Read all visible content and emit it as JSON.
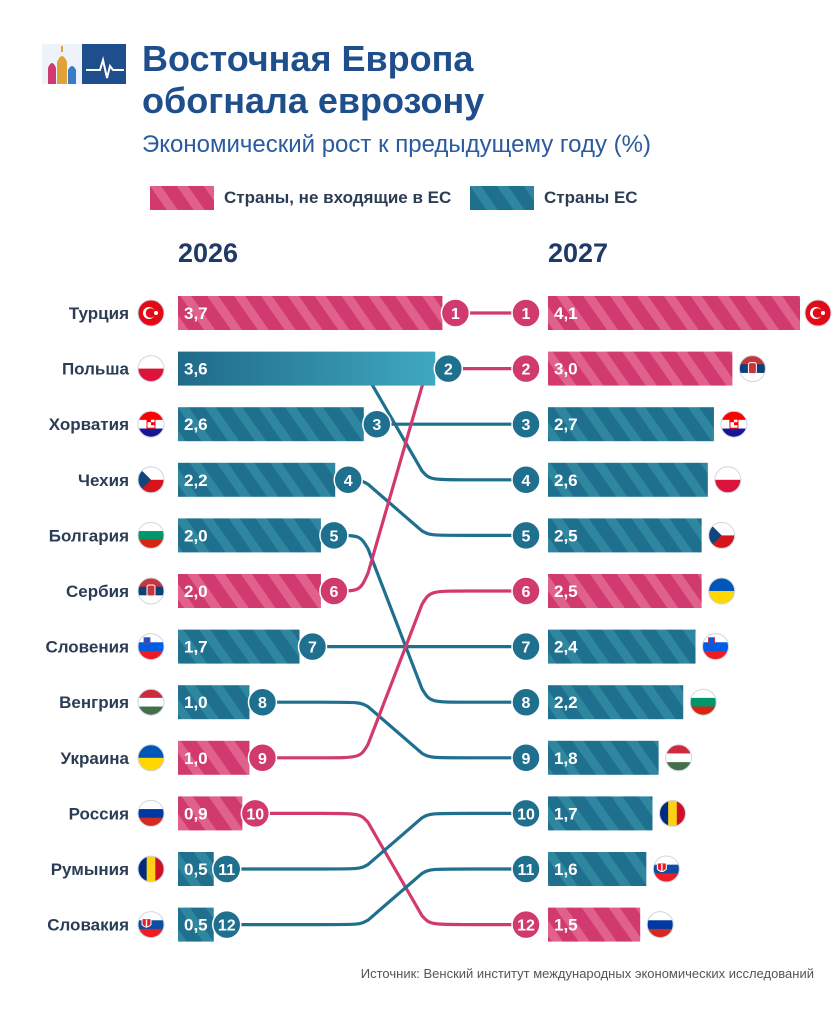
{
  "header": {
    "title_line1": "Восточная Европа",
    "title_line2": "обогнала еврозону",
    "subtitle": "Экономический рост к предыдущему году (%)"
  },
  "colors": {
    "non_eu": "#d13a6e",
    "eu": "#1f6f8e",
    "eu_top": "#3a9bb6",
    "title": "#1f4e8c"
  },
  "legend": {
    "non_eu": "Страны, не входящие в ЕС",
    "eu": "Страны ЕС"
  },
  "source": "Источник: Венский институт международных экономических исследований",
  "chart_data": {
    "type": "bar",
    "value_max": 4.1,
    "flags": {
      "Турция": "turkey-flag",
      "Польша": "poland-flag",
      "Хорватия": "croatia-flag",
      "Чехия": "czechia-flag",
      "Болгария": "bulgaria-flag",
      "Сербия": "serbia-flag",
      "Словения": "slovenia-flag",
      "Венгрия": "hungary-flag",
      "Украина": "ukraine-flag",
      "Россия": "russia-flag",
      "Румыния": "romania-flag",
      "Словакия": "slovakia-flag"
    },
    "panels": [
      {
        "year": "2026",
        "rows": [
          {
            "rank": 1,
            "country": "Турция",
            "value": 3.7,
            "label": "3,7",
            "group": "non_eu"
          },
          {
            "rank": 2,
            "country": "Польша",
            "value": 3.6,
            "label": "3,6",
            "group": "eu"
          },
          {
            "rank": 3,
            "country": "Хорватия",
            "value": 2.6,
            "label": "2,6",
            "group": "eu"
          },
          {
            "rank": 4,
            "country": "Чехия",
            "value": 2.2,
            "label": "2,2",
            "group": "eu"
          },
          {
            "rank": 5,
            "country": "Болгария",
            "value": 2.0,
            "label": "2,0",
            "group": "eu"
          },
          {
            "rank": 6,
            "country": "Сербия",
            "value": 2.0,
            "label": "2,0",
            "group": "non_eu"
          },
          {
            "rank": 7,
            "country": "Словения",
            "value": 1.7,
            "label": "1,7",
            "group": "eu"
          },
          {
            "rank": 8,
            "country": "Венгрия",
            "value": 1.0,
            "label": "1,0",
            "group": "eu"
          },
          {
            "rank": 9,
            "country": "Украина",
            "value": 1.0,
            "label": "1,0",
            "group": "non_eu"
          },
          {
            "rank": 10,
            "country": "Россия",
            "value": 0.9,
            "label": "0,9",
            "group": "non_eu"
          },
          {
            "rank": 11,
            "country": "Румыния",
            "value": 0.5,
            "label": "0,5",
            "group": "eu"
          },
          {
            "rank": 12,
            "country": "Словакия",
            "value": 0.5,
            "label": "0,5",
            "group": "eu"
          }
        ]
      },
      {
        "year": "2027",
        "rows": [
          {
            "rank": 1,
            "country": "Турция",
            "value": 4.1,
            "label": "4,1",
            "group": "non_eu"
          },
          {
            "rank": 2,
            "country": "Сербия",
            "value": 3.0,
            "label": "3,0",
            "group": "non_eu"
          },
          {
            "rank": 3,
            "country": "Хорватия",
            "value": 2.7,
            "label": "2,7",
            "group": "eu"
          },
          {
            "rank": 4,
            "country": "Польша",
            "value": 2.6,
            "label": "2,6",
            "group": "eu"
          },
          {
            "rank": 5,
            "country": "Чехия",
            "value": 2.5,
            "label": "2,5",
            "group": "eu"
          },
          {
            "rank": 6,
            "country": "Украина",
            "value": 2.5,
            "label": "2,5",
            "group": "non_eu"
          },
          {
            "rank": 7,
            "country": "Словения",
            "value": 2.4,
            "label": "2,4",
            "group": "eu"
          },
          {
            "rank": 8,
            "country": "Болгария",
            "value": 2.2,
            "label": "2,2",
            "group": "eu"
          },
          {
            "rank": 9,
            "country": "Венгрия",
            "value": 1.8,
            "label": "1,8",
            "group": "eu"
          },
          {
            "rank": 10,
            "country": "Румыния",
            "value": 1.7,
            "label": "1,7",
            "group": "eu"
          },
          {
            "rank": 11,
            "country": "Словакия",
            "value": 1.6,
            "label": "1,6",
            "group": "eu"
          },
          {
            "rank": 12,
            "country": "Россия",
            "value": 1.5,
            "label": "1,5",
            "group": "non_eu"
          }
        ]
      }
    ]
  }
}
